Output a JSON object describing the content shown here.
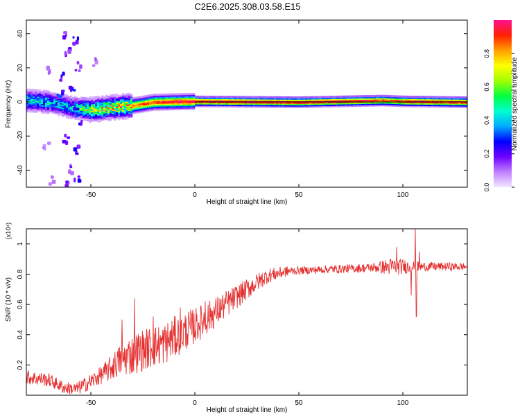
{
  "title": "C2E6.2025.308.03.58.E15",
  "chart_data": [
    {
      "type": "heatmap",
      "xlabel": "Height of straight line (km)",
      "ylabel": "Frequency (Hz)",
      "xlim": [
        -81,
        131
      ],
      "ylim": [
        -50,
        48
      ],
      "xticks": [
        -50,
        0,
        50,
        100
      ],
      "yticks": [
        -40,
        -20,
        0,
        20,
        40
      ],
      "xtick_labels": [
        "-50",
        "0",
        "50",
        "100"
      ],
      "ytick_labels": [
        "-40",
        "-20",
        "0",
        "20",
        "40"
      ],
      "reference_line_hz": 0,
      "colorbar": {
        "label": "Normalized spectral amplitude",
        "range": [
          0,
          1
        ],
        "ticks": [
          0.0,
          0.2,
          0.4,
          0.6,
          0.8
        ],
        "tick_labels": [
          "0.0",
          "0.2",
          "0.4",
          "0.6",
          "0.8"
        ],
        "colors": [
          "#f2e6ff",
          "#c080ff",
          "#7000ff",
          "#0000ff",
          "#00aaff",
          "#00ffd0",
          "#00ff40",
          "#a0ff00",
          "#ffff00",
          "#ffa000",
          "#ff2000",
          "#ff1090"
        ]
      },
      "ridge_center_hz": [
        {
          "x": -80,
          "f": 1.0
        },
        {
          "x": -70,
          "f": 0.0
        },
        {
          "x": -60,
          "f": -3.0
        },
        {
          "x": -50,
          "f": -4.5
        },
        {
          "x": -40,
          "f": -3.0
        },
        {
          "x": -30,
          "f": -2.0
        },
        {
          "x": -20,
          "f": 0.0
        },
        {
          "x": 0,
          "f": 0.5
        },
        {
          "x": 50,
          "f": 0.0
        },
        {
          "x": 90,
          "f": 1.0
        },
        {
          "x": 100,
          "f": 0.5
        },
        {
          "x": 131,
          "f": 0.0
        }
      ],
      "ridge_peak_amplitude": [
        {
          "x": -80,
          "a": 0.45
        },
        {
          "x": -60,
          "a": 0.4
        },
        {
          "x": -50,
          "a": 0.7
        },
        {
          "x": -40,
          "a": 0.75
        },
        {
          "x": -25,
          "a": 0.88
        },
        {
          "x": -10,
          "a": 0.95
        },
        {
          "x": 0,
          "a": 0.97
        },
        {
          "x": 50,
          "a": 0.98
        },
        {
          "x": 80,
          "a": 0.97
        },
        {
          "x": 95,
          "a": 0.9
        },
        {
          "x": 105,
          "a": 0.97
        },
        {
          "x": 131,
          "a": 0.95
        }
      ],
      "scatter_blobs": [
        {
          "x": -63,
          "f": 42,
          "a": 0.15
        },
        {
          "x": -62,
          "f": 30,
          "a": 0.18
        },
        {
          "x": -58,
          "f": 36,
          "a": 0.22
        },
        {
          "x": -57,
          "f": 22,
          "a": 0.15
        },
        {
          "x": -64,
          "f": 15,
          "a": 0.2
        },
        {
          "x": -60,
          "f": 10,
          "a": 0.25
        },
        {
          "x": -56,
          "f": -12,
          "a": 0.2
        },
        {
          "x": -63,
          "f": -20,
          "a": 0.18
        },
        {
          "x": -58,
          "f": -28,
          "a": 0.2
        },
        {
          "x": -61,
          "f": -38,
          "a": 0.15
        },
        {
          "x": -57,
          "f": -44,
          "a": 0.22
        },
        {
          "x": -62,
          "f": -47,
          "a": 0.15
        },
        {
          "x": -70,
          "f": 20,
          "a": 0.1
        },
        {
          "x": -48,
          "f": 25,
          "a": 0.1
        },
        {
          "x": -72,
          "f": -25,
          "a": 0.1
        },
        {
          "x": -69,
          "f": -45,
          "a": 0.12
        },
        {
          "x": -65,
          "f": 5,
          "a": 0.25
        },
        {
          "x": -58,
          "f": -5,
          "a": 0.3
        }
      ]
    },
    {
      "type": "line",
      "xlabel": "Height of straight line (km)",
      "ylabel": "SNR (10 * v/v)",
      "scale_label": "(x10⁴)",
      "xlim": [
        -81,
        131
      ],
      "ylim": [
        0,
        1.1
      ],
      "xticks": [
        -50,
        0,
        50,
        100
      ],
      "yticks": [
        0.2,
        0.4,
        0.6,
        0.8,
        1.0
      ],
      "xtick_labels": [
        "-50",
        "0",
        "50",
        "100"
      ],
      "ytick_labels": [
        "0.2",
        "0.4",
        "0.6",
        "0.8",
        "1"
      ],
      "series": [
        {
          "name": "SNR",
          "color": "#e53030",
          "trend": [
            {
              "x": -81,
              "y": 0.12
            },
            {
              "x": -70,
              "y": 0.1
            },
            {
              "x": -63,
              "y": 0.05
            },
            {
              "x": -57,
              "y": 0.04
            },
            {
              "x": -50,
              "y": 0.09
            },
            {
              "x": -43,
              "y": 0.15
            },
            {
              "x": -35,
              "y": 0.24
            },
            {
              "x": -25,
              "y": 0.3
            },
            {
              "x": -15,
              "y": 0.34
            },
            {
              "x": -5,
              "y": 0.42
            },
            {
              "x": 5,
              "y": 0.5
            },
            {
              "x": 15,
              "y": 0.6
            },
            {
              "x": 25,
              "y": 0.7
            },
            {
              "x": 35,
              "y": 0.79
            },
            {
              "x": 45,
              "y": 0.82
            },
            {
              "x": 60,
              "y": 0.83
            },
            {
              "x": 80,
              "y": 0.84
            },
            {
              "x": 95,
              "y": 0.85
            },
            {
              "x": 110,
              "y": 0.85
            },
            {
              "x": 131,
              "y": 0.85
            }
          ],
          "noise_amplitude": [
            {
              "x": -81,
              "a": 0.05
            },
            {
              "x": -60,
              "a": 0.04
            },
            {
              "x": -45,
              "a": 0.06
            },
            {
              "x": -30,
              "a": 0.14
            },
            {
              "x": -10,
              "a": 0.14
            },
            {
              "x": 10,
              "a": 0.1
            },
            {
              "x": 30,
              "a": 0.06
            },
            {
              "x": 50,
              "a": 0.025
            },
            {
              "x": 85,
              "a": 0.03
            },
            {
              "x": 95,
              "a": 0.06
            },
            {
              "x": 110,
              "a": 0.03
            },
            {
              "x": 131,
              "a": 0.025
            }
          ],
          "spikes": [
            {
              "x": -29,
              "y": 0.64
            },
            {
              "x": -35,
              "y": 0.5
            },
            {
              "x": -20,
              "y": 0.52
            },
            {
              "x": -7,
              "y": 0.58
            },
            {
              "x": 5,
              "y": 0.62
            },
            {
              "x": 14,
              "y": 0.6
            },
            {
              "x": 97,
              "y": 0.98
            },
            {
              "x": 106,
              "y": 1.1
            },
            {
              "x": 106.5,
              "y": 0.52
            },
            {
              "x": 104,
              "y": 0.66
            },
            {
              "x": 108,
              "y": 0.95
            }
          ]
        }
      ]
    }
  ]
}
